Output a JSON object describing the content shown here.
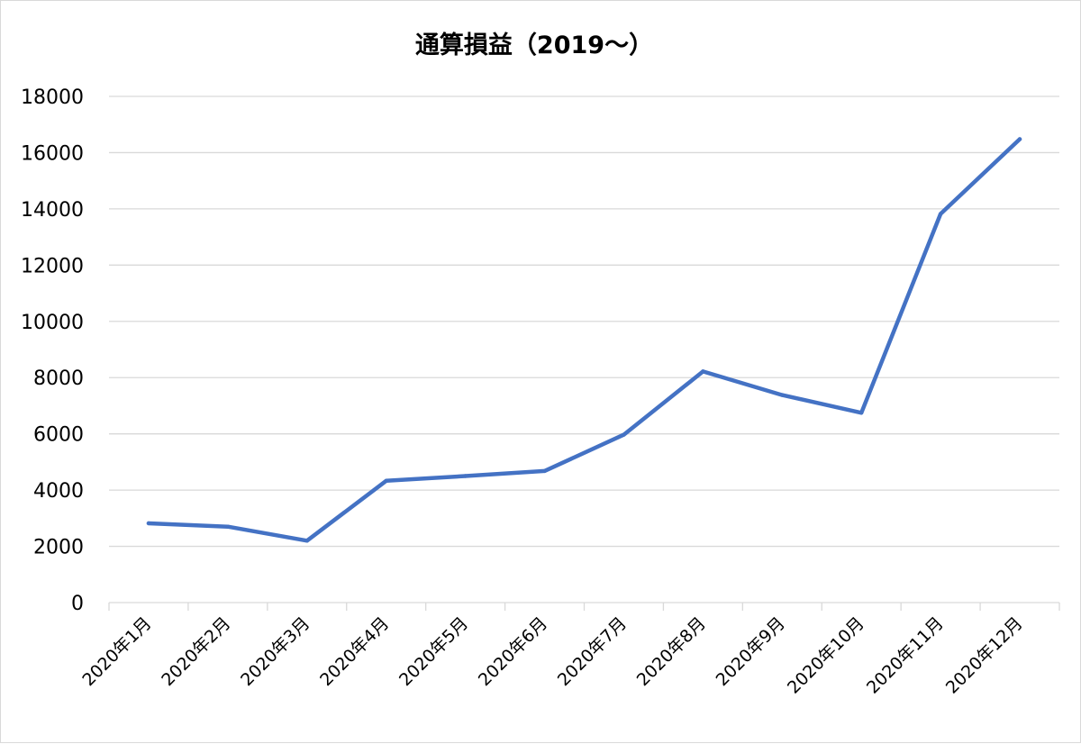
{
  "chart_data": {
    "type": "line",
    "title": "通算損益（2019〜）",
    "xlabel": "",
    "ylabel": "",
    "categories": [
      "2020年1月",
      "2020年2月",
      "2020年3月",
      "2020年4月",
      "2020年5月",
      "2020年6月",
      "2020年7月",
      "2020年8月",
      "2020年9月",
      "2020年10月",
      "2020年11月",
      "2020年12月"
    ],
    "series": [
      {
        "color": "#4472c4",
        "values": [
          2820,
          2700,
          2200,
          4330,
          4500,
          4680,
          5970,
          8220,
          7380,
          6750,
          13820,
          16480
        ]
      }
    ],
    "ylim": [
      0,
      18000
    ],
    "yticks": [
      0,
      2000,
      4000,
      6000,
      8000,
      10000,
      12000,
      14000,
      16000,
      18000
    ],
    "grid": true,
    "legend": "none"
  }
}
